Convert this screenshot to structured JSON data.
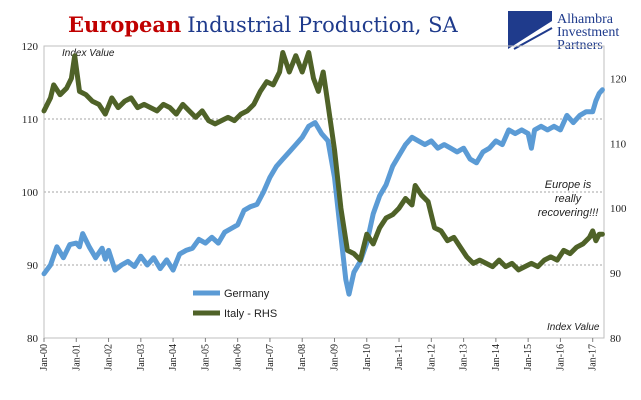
{
  "title": {
    "part1": "European",
    "part2": "Industrial Production, SA"
  },
  "logo": {
    "lines": [
      "Alhambra",
      "Investment",
      "Partners"
    ],
    "color": "#1f3b8c"
  },
  "colors": {
    "germany": "#5b9bd5",
    "italy": "#4f6228",
    "title_red": "#c00000",
    "title_blue": "#1f3b8c"
  },
  "chart_data": {
    "type": "line",
    "title": "European Industrial Production, SA",
    "left_axis": {
      "note": "Index Value",
      "range": [
        80,
        120
      ],
      "ticks": [
        "80",
        "90",
        "100",
        "110",
        "120"
      ],
      "grid_values": [
        90,
        100,
        110
      ]
    },
    "right_axis": {
      "note": "Index Value",
      "range": [
        80,
        125
      ],
      "ticks": [
        "80",
        "90",
        "100",
        "110",
        "120"
      ]
    },
    "x_axis": {
      "range": [
        2000.0,
        2017.35
      ],
      "ticks": [
        "Jan-00",
        "Jan-01",
        "Jan-02",
        "Jan-03",
        "Jan-04",
        "Jan-05",
        "Jan-06",
        "Jan-07",
        "Jan-08",
        "Jan-09",
        "Jan-10",
        "Jan-11",
        "Jan-12",
        "Jan-13",
        "Jan-14",
        "Jan-15",
        "Jan-16",
        "Jan-17"
      ]
    },
    "annotation": [
      "Europe is",
      "really",
      "recovering!!!"
    ],
    "grid": true,
    "legend_position": "center-left",
    "series": [
      {
        "name": "Germany",
        "axis": "left",
        "points": [
          [
            2000.0,
            88.8
          ],
          [
            2000.2,
            90.0
          ],
          [
            2000.4,
            92.5
          ],
          [
            2000.6,
            91.0
          ],
          [
            2000.8,
            92.8
          ],
          [
            2001.0,
            93.0
          ],
          [
            2001.1,
            92.5
          ],
          [
            2001.2,
            94.3
          ],
          [
            2001.4,
            92.5
          ],
          [
            2001.6,
            91.0
          ],
          [
            2001.8,
            92.3
          ],
          [
            2001.9,
            90.8
          ],
          [
            2002.0,
            92.0
          ],
          [
            2002.2,
            89.3
          ],
          [
            2002.4,
            90.0
          ],
          [
            2002.6,
            90.5
          ],
          [
            2002.8,
            89.8
          ],
          [
            2003.0,
            91.2
          ],
          [
            2003.2,
            90.0
          ],
          [
            2003.4,
            91.0
          ],
          [
            2003.6,
            89.5
          ],
          [
            2003.8,
            90.7
          ],
          [
            2004.0,
            89.3
          ],
          [
            2004.2,
            91.5
          ],
          [
            2004.4,
            92.0
          ],
          [
            2004.6,
            92.3
          ],
          [
            2004.8,
            93.5
          ],
          [
            2005.0,
            93.0
          ],
          [
            2005.2,
            93.8
          ],
          [
            2005.4,
            93.0
          ],
          [
            2005.6,
            94.5
          ],
          [
            2005.8,
            95.0
          ],
          [
            2006.0,
            95.5
          ],
          [
            2006.2,
            97.5
          ],
          [
            2006.4,
            98.0
          ],
          [
            2006.6,
            98.3
          ],
          [
            2006.8,
            100.0
          ],
          [
            2007.0,
            102.0
          ],
          [
            2007.2,
            103.5
          ],
          [
            2007.4,
            104.5
          ],
          [
            2007.6,
            105.5
          ],
          [
            2007.8,
            106.5
          ],
          [
            2008.0,
            107.5
          ],
          [
            2008.2,
            109.0
          ],
          [
            2008.4,
            109.5
          ],
          [
            2008.6,
            108.0
          ],
          [
            2008.8,
            107.0
          ],
          [
            2009.0,
            102.0
          ],
          [
            2009.2,
            94.0
          ],
          [
            2009.35,
            88.0
          ],
          [
            2009.45,
            86.0
          ],
          [
            2009.6,
            89.0
          ],
          [
            2009.8,
            90.5
          ],
          [
            2010.0,
            93.0
          ],
          [
            2010.2,
            97.0
          ],
          [
            2010.4,
            99.5
          ],
          [
            2010.6,
            101.0
          ],
          [
            2010.8,
            103.5
          ],
          [
            2011.0,
            105.0
          ],
          [
            2011.2,
            106.5
          ],
          [
            2011.4,
            107.5
          ],
          [
            2011.6,
            107.0
          ],
          [
            2011.8,
            106.5
          ],
          [
            2012.0,
            107.0
          ],
          [
            2012.2,
            106.0
          ],
          [
            2012.4,
            106.5
          ],
          [
            2012.6,
            106.0
          ],
          [
            2012.8,
            105.5
          ],
          [
            2013.0,
            106.0
          ],
          [
            2013.2,
            104.5
          ],
          [
            2013.4,
            104.0
          ],
          [
            2013.6,
            105.5
          ],
          [
            2013.8,
            106.0
          ],
          [
            2014.0,
            107.0
          ],
          [
            2014.2,
            106.5
          ],
          [
            2014.4,
            108.5
          ],
          [
            2014.6,
            108.0
          ],
          [
            2014.8,
            108.5
          ],
          [
            2015.0,
            108.0
          ],
          [
            2015.1,
            106.0
          ],
          [
            2015.2,
            108.5
          ],
          [
            2015.4,
            109.0
          ],
          [
            2015.6,
            108.5
          ],
          [
            2015.8,
            109.0
          ],
          [
            2016.0,
            108.5
          ],
          [
            2016.2,
            110.5
          ],
          [
            2016.4,
            109.5
          ],
          [
            2016.6,
            110.5
          ],
          [
            2016.8,
            111.0
          ],
          [
            2017.0,
            111.0
          ],
          [
            2017.1,
            112.5
          ],
          [
            2017.2,
            113.5
          ],
          [
            2017.3,
            114.0
          ]
        ]
      },
      {
        "name": "Italy - RHS",
        "axis": "right",
        "points": [
          [
            2000.0,
            115.0
          ],
          [
            2000.2,
            117.0
          ],
          [
            2000.3,
            119.0
          ],
          [
            2000.5,
            117.5
          ],
          [
            2000.7,
            118.5
          ],
          [
            2000.85,
            120.0
          ],
          [
            2000.95,
            123.5
          ],
          [
            2001.1,
            118.0
          ],
          [
            2001.3,
            117.5
          ],
          [
            2001.5,
            116.5
          ],
          [
            2001.7,
            116.0
          ],
          [
            2001.9,
            114.5
          ],
          [
            2002.1,
            117.0
          ],
          [
            2002.3,
            115.5
          ],
          [
            2002.5,
            116.5
          ],
          [
            2002.7,
            117.0
          ],
          [
            2002.9,
            115.5
          ],
          [
            2003.1,
            116.0
          ],
          [
            2003.3,
            115.5
          ],
          [
            2003.5,
            115.0
          ],
          [
            2003.7,
            116.0
          ],
          [
            2003.9,
            115.5
          ],
          [
            2004.1,
            114.5
          ],
          [
            2004.3,
            116.0
          ],
          [
            2004.5,
            115.0
          ],
          [
            2004.7,
            114.0
          ],
          [
            2004.9,
            115.0
          ],
          [
            2005.1,
            113.5
          ],
          [
            2005.3,
            113.0
          ],
          [
            2005.5,
            113.5
          ],
          [
            2005.7,
            114.0
          ],
          [
            2005.9,
            113.5
          ],
          [
            2006.1,
            114.5
          ],
          [
            2006.3,
            115.0
          ],
          [
            2006.5,
            116.0
          ],
          [
            2006.7,
            118.0
          ],
          [
            2006.9,
            119.5
          ],
          [
            2007.1,
            119.0
          ],
          [
            2007.3,
            121.0
          ],
          [
            2007.4,
            124.0
          ],
          [
            2007.6,
            121.0
          ],
          [
            2007.8,
            123.5
          ],
          [
            2008.0,
            121.0
          ],
          [
            2008.2,
            124.0
          ],
          [
            2008.35,
            120.0
          ],
          [
            2008.5,
            118.0
          ],
          [
            2008.65,
            121.0
          ],
          [
            2008.8,
            116.0
          ],
          [
            2009.0,
            109.0
          ],
          [
            2009.2,
            100.0
          ],
          [
            2009.4,
            93.5
          ],
          [
            2009.6,
            93.0
          ],
          [
            2009.8,
            92.0
          ],
          [
            2010.0,
            96.0
          ],
          [
            2010.2,
            94.5
          ],
          [
            2010.4,
            97.0
          ],
          [
            2010.6,
            98.5
          ],
          [
            2010.8,
            99.0
          ],
          [
            2011.0,
            100.0
          ],
          [
            2011.2,
            101.5
          ],
          [
            2011.4,
            100.5
          ],
          [
            2011.5,
            103.5
          ],
          [
            2011.7,
            102.0
          ],
          [
            2011.9,
            101.0
          ],
          [
            2012.1,
            97.0
          ],
          [
            2012.3,
            96.5
          ],
          [
            2012.5,
            95.0
          ],
          [
            2012.7,
            95.5
          ],
          [
            2012.9,
            94.0
          ],
          [
            2013.1,
            92.5
          ],
          [
            2013.3,
            91.5
          ],
          [
            2013.5,
            92.0
          ],
          [
            2013.7,
            91.5
          ],
          [
            2013.9,
            91.0
          ],
          [
            2014.1,
            92.0
          ],
          [
            2014.3,
            91.0
          ],
          [
            2014.5,
            91.5
          ],
          [
            2014.7,
            90.5
          ],
          [
            2014.9,
            91.0
          ],
          [
            2015.1,
            91.5
          ],
          [
            2015.3,
            91.0
          ],
          [
            2015.5,
            92.0
          ],
          [
            2015.7,
            92.5
          ],
          [
            2015.9,
            92.0
          ],
          [
            2016.1,
            93.5
          ],
          [
            2016.3,
            93.0
          ],
          [
            2016.5,
            94.0
          ],
          [
            2016.7,
            94.5
          ],
          [
            2016.9,
            95.5
          ],
          [
            2017.0,
            96.5
          ],
          [
            2017.1,
            95.0
          ],
          [
            2017.2,
            96.0
          ],
          [
            2017.3,
            96.0
          ]
        ]
      }
    ]
  }
}
